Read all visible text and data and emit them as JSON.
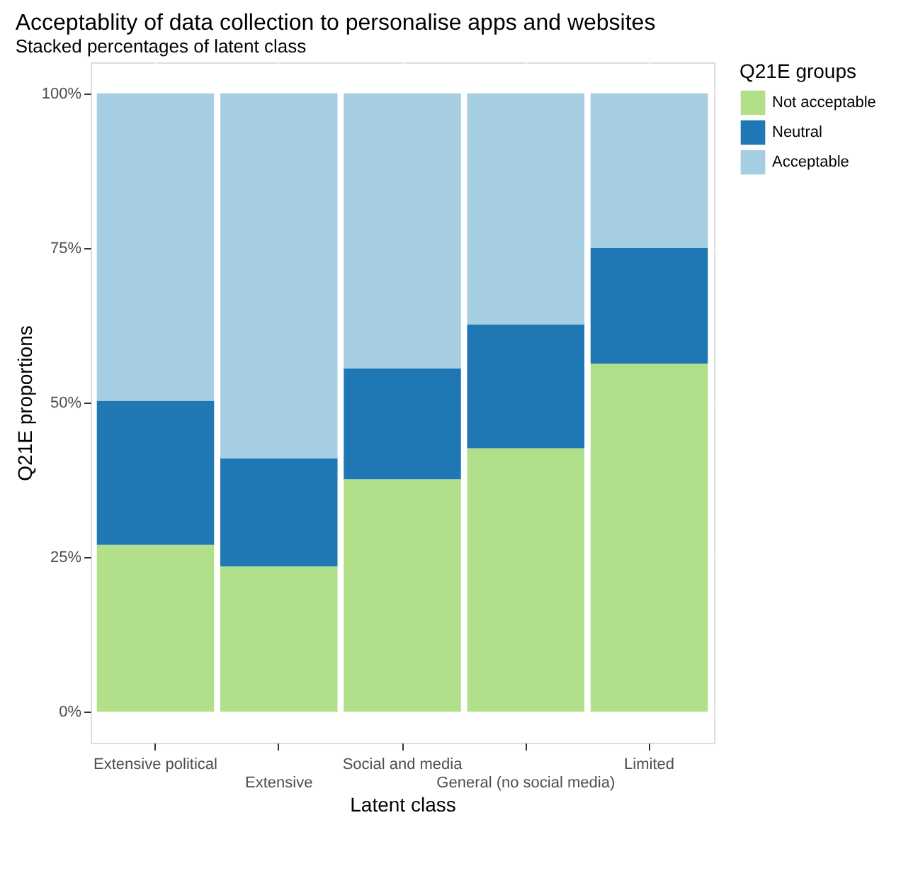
{
  "chart_data": {
    "type": "bar",
    "title": "Acceptablity of data collection to personalise apps and websites",
    "subtitle": "Stacked percentages of latent class",
    "xlabel": "Latent class",
    "ylabel": "Q21E proportions",
    "legend_title": "Q21E groups",
    "categories": [
      "Extensive political",
      "Extensive",
      "Social and media",
      "General (no social media)",
      "Limited"
    ],
    "stacked": true,
    "series": [
      {
        "name": "Not acceptable",
        "color": "#b2df8a",
        "values": [
          27.0,
          23.5,
          37.6,
          42.6,
          56.3
        ]
      },
      {
        "name": "Neutral",
        "color": "#1f78b4",
        "values": [
          23.3,
          17.5,
          17.9,
          20.0,
          18.7
        ]
      },
      {
        "name": "Acceptable",
        "color": "#a6cee3",
        "values": [
          49.7,
          59.0,
          44.5,
          37.4,
          25.0
        ]
      }
    ],
    "ylim": [
      -5,
      105
    ],
    "yticks": [
      {
        "value": 0,
        "label": "0%"
      },
      {
        "value": 25,
        "label": "25%"
      },
      {
        "value": 50,
        "label": "50%"
      },
      {
        "value": 75,
        "label": "75%"
      },
      {
        "value": 100,
        "label": "100%"
      }
    ],
    "grid": true,
    "legend": "right"
  }
}
